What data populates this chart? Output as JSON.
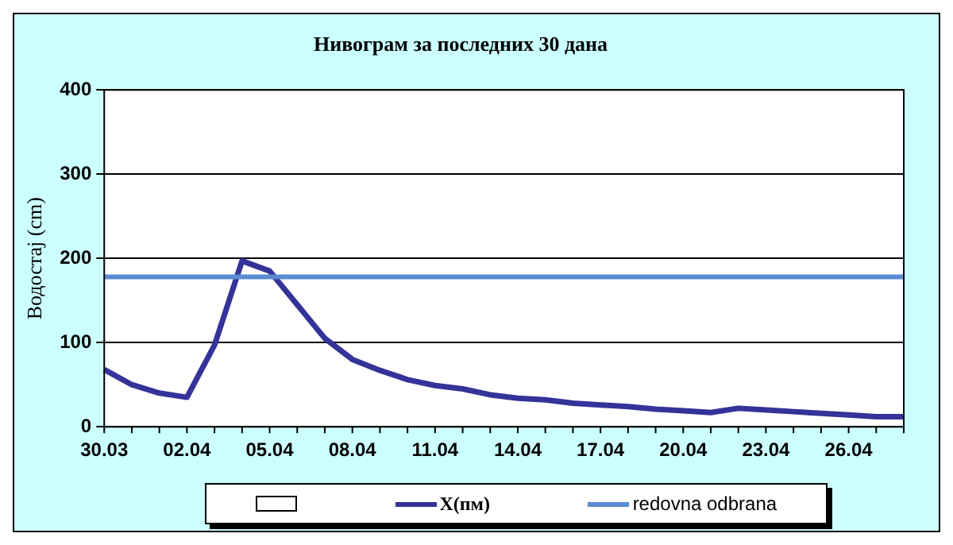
{
  "chart_data": {
    "type": "line",
    "title": "Нивограм за последних 30 дана",
    "ylabel": "Водостај (cm)",
    "categories": [
      "30.03",
      null,
      null,
      "02.04",
      null,
      null,
      "05.04",
      null,
      null,
      "08.04",
      null,
      null,
      "11.04",
      null,
      null,
      "14.04",
      null,
      null,
      "17.04",
      null,
      null,
      "20.04",
      null,
      null,
      "23.04",
      null,
      null,
      "26.04",
      null,
      null
    ],
    "series": [
      {
        "name": "X(пм)",
        "color": "#333399",
        "values": [
          68,
          50,
          40,
          35,
          97,
          197,
          185,
          145,
          105,
          80,
          67,
          56,
          49,
          45,
          38,
          34,
          32,
          28,
          26,
          24,
          21,
          19,
          17,
          22,
          20,
          18,
          16,
          14,
          12,
          12
        ]
      }
    ],
    "ref_lines": [
      {
        "axis": "y",
        "value": 178,
        "label": "redovna odbrana",
        "color": "#5b8bd0"
      }
    ],
    "ylim": [
      0,
      400
    ],
    "yticks": [
      0,
      100,
      200,
      300,
      400
    ],
    "grid": "y",
    "legend": "bottom",
    "marker": "none",
    "line_style": "solid"
  }
}
